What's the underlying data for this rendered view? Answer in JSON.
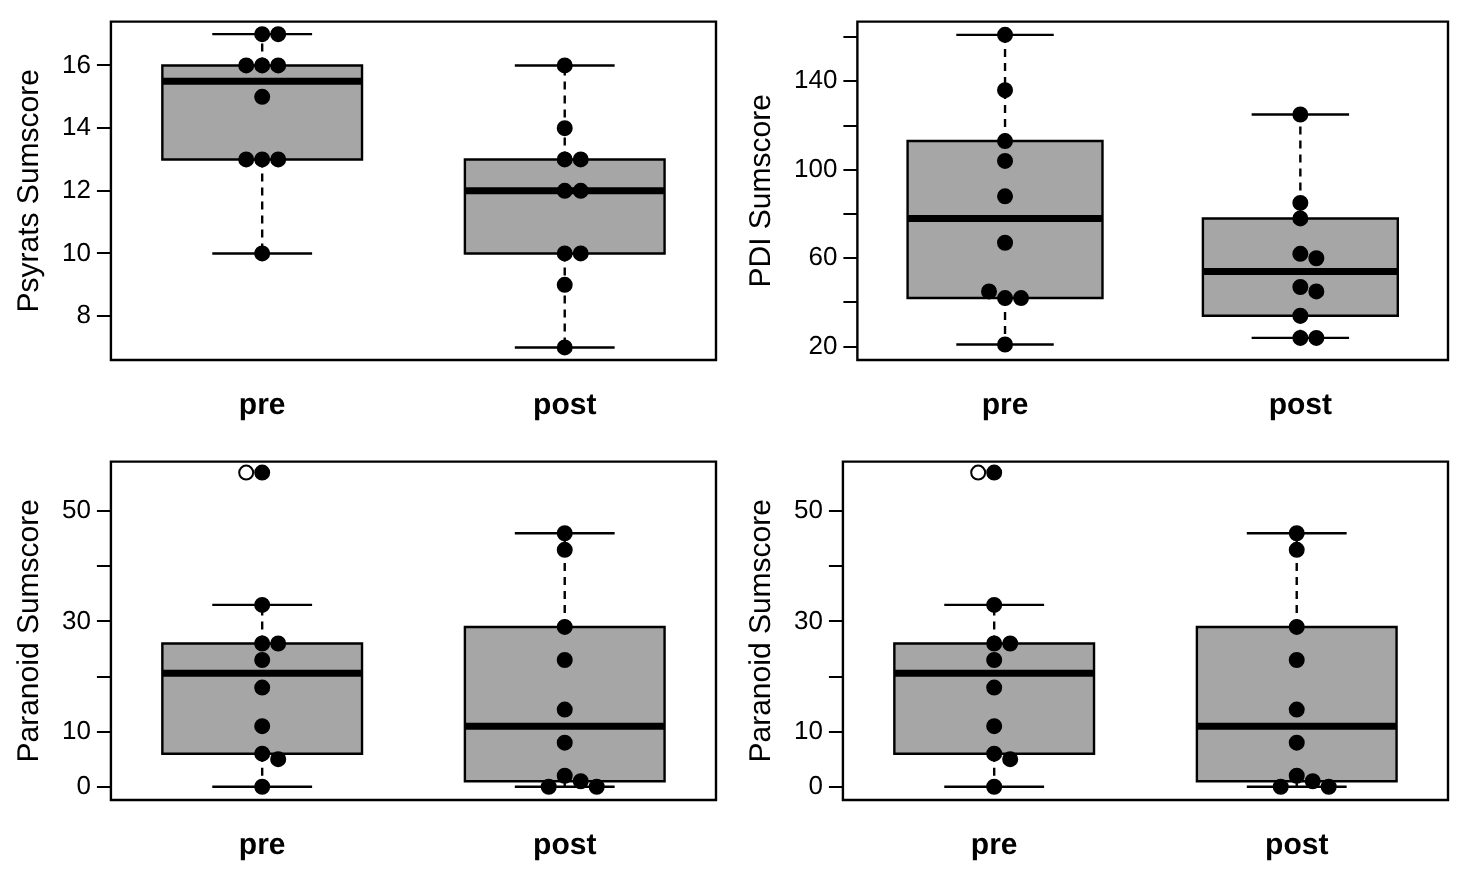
{
  "chart_data": [
    {
      "type": "box",
      "categories": [
        "pre",
        "post"
      ],
      "ylabel": "Psyrats Sumscore",
      "ylim": [
        6.6,
        17.4
      ],
      "yticks": [
        8,
        10,
        12,
        14,
        16
      ],
      "marker": "circle",
      "series": [
        {
          "type": "box",
          "color": "#a6a6a6",
          "boxes": [
            {
              "low": 10,
              "q1": 13,
              "median": 15.5,
              "q3": 16,
              "high": 17
            },
            {
              "low": 7,
              "q1": 10,
              "median": 12,
              "q3": 13,
              "high": 16
            }
          ]
        },
        {
          "type": "scatter",
          "color": "#000000",
          "x": [
            "pre",
            "pre",
            "pre",
            "pre",
            "pre",
            "pre",
            "pre",
            "pre",
            "pre",
            "pre",
            "post",
            "post",
            "post",
            "post",
            "post",
            "post",
            "post",
            "post",
            "post",
            "post"
          ],
          "values": [
            17,
            17,
            16,
            16,
            16,
            15,
            13,
            13,
            13,
            10,
            16,
            14,
            13,
            13,
            12,
            12,
            10,
            10,
            9,
            7
          ]
        }
      ]
    },
    {
      "type": "box",
      "categories": [
        "pre",
        "post"
      ],
      "ylabel": "PDI Sumscore",
      "ylim": [
        14,
        167
      ],
      "yticks": [
        20,
        {
          "value": 40,
          "label": null
        },
        60,
        {
          "value": 80,
          "label": null
        },
        100,
        {
          "value": 120,
          "label": null
        },
        140,
        {
          "value": 160,
          "label": null
        }
      ],
      "marker": "circle",
      "series": [
        {
          "type": "box",
          "color": "#a6a6a6",
          "boxes": [
            {
              "low": 21,
              "q1": 42,
              "median": 78,
              "q3": 113,
              "high": 161
            },
            {
              "low": 24,
              "q1": 34,
              "median": 54,
              "q3": 78,
              "high": 125
            }
          ]
        },
        {
          "type": "scatter",
          "color": "#000000",
          "x": [
            "pre",
            "pre",
            "pre",
            "pre",
            "pre",
            "pre",
            "pre",
            "pre",
            "pre",
            "pre",
            "post",
            "post",
            "post",
            "post",
            "post",
            "post",
            "post",
            "post",
            "post",
            "post"
          ],
          "values": [
            161,
            136,
            113,
            104,
            88,
            67,
            42,
            42,
            45,
            21,
            125,
            85,
            78,
            62,
            60,
            47,
            45,
            34,
            24,
            24
          ]
        }
      ]
    },
    {
      "type": "box",
      "categories": [
        "pre",
        "post"
      ],
      "ylabel": "Paranoid Sumscore",
      "ylim": [
        -2.4,
        59
      ],
      "yticks": [
        0,
        10,
        {
          "value": 20,
          "label": null
        },
        30,
        {
          "value": 40,
          "label": null
        },
        50
      ],
      "marker": "circle",
      "series": [
        {
          "type": "box",
          "color": "#a6a6a6",
          "boxes": [
            {
              "low": 0,
              "q1": 6,
              "median": 20.6,
              "q3": 26,
              "high": 33,
              "outliers": [
                57
              ]
            },
            {
              "low": 0,
              "q1": 1,
              "median": 11,
              "q3": 29,
              "high": 46
            }
          ]
        },
        {
          "type": "scatter",
          "color": "#000000",
          "x": [
            "pre",
            "pre",
            "pre",
            "pre",
            "pre",
            "pre",
            "pre",
            "pre",
            "pre",
            "pre",
            "post",
            "post",
            "post",
            "post",
            "post",
            "post",
            "post",
            "post",
            "post",
            "post"
          ],
          "values": [
            57,
            33,
            26,
            26,
            23,
            18,
            11,
            6,
            5,
            0,
            46,
            43,
            29,
            23,
            14,
            8,
            2,
            1,
            0,
            0
          ]
        }
      ]
    },
    {
      "type": "box",
      "categories": [
        "pre",
        "post"
      ],
      "ylabel": "Paranoid Sumscore",
      "ylim": [
        -2.4,
        59
      ],
      "yticks": [
        0,
        10,
        {
          "value": 20,
          "label": null
        },
        30,
        {
          "value": 40,
          "label": null
        },
        50
      ],
      "marker": "circle",
      "series": [
        {
          "type": "box",
          "color": "#a6a6a6",
          "boxes": [
            {
              "low": 0,
              "q1": 6,
              "median": 20.6,
              "q3": 26,
              "high": 33,
              "outliers": [
                57
              ]
            },
            {
              "low": 0,
              "q1": 1,
              "median": 11,
              "q3": 29,
              "high": 46
            }
          ]
        },
        {
          "type": "scatter",
          "color": "#000000",
          "x": [
            "pre",
            "pre",
            "pre",
            "pre",
            "pre",
            "pre",
            "pre",
            "pre",
            "pre",
            "pre",
            "post",
            "post",
            "post",
            "post",
            "post",
            "post",
            "post",
            "post",
            "post",
            "post"
          ],
          "values": [
            57,
            33,
            26,
            26,
            23,
            18,
            11,
            6,
            5,
            0,
            46,
            43,
            29,
            23,
            14,
            8,
            2,
            1,
            0,
            0
          ]
        }
      ]
    }
  ]
}
